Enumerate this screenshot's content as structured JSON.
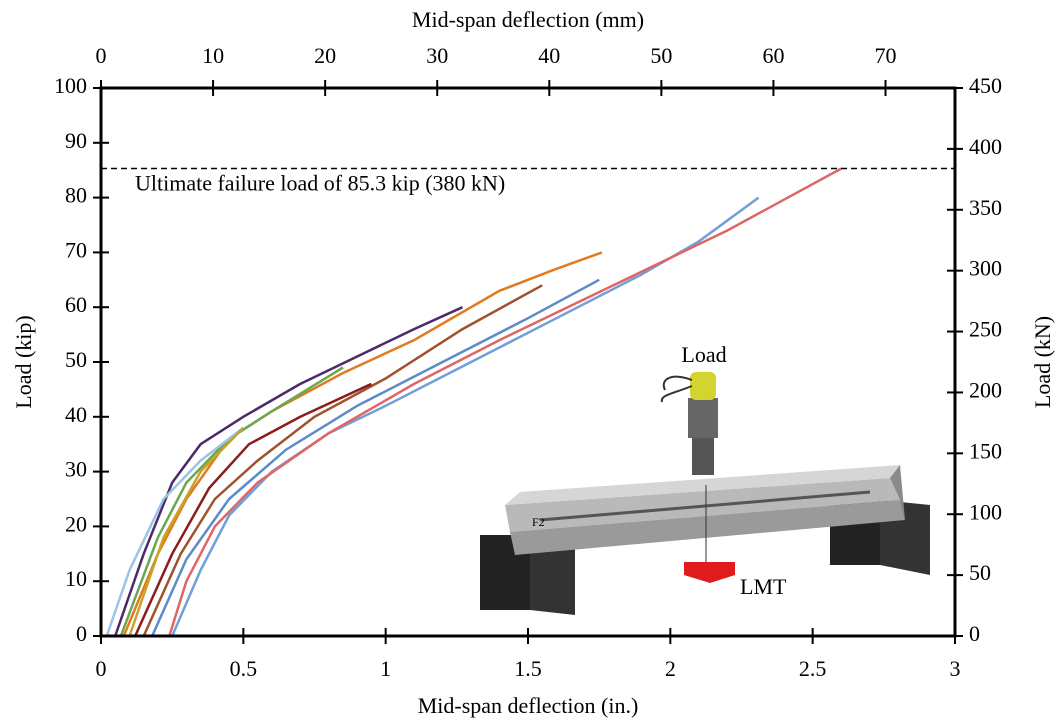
{
  "chart_data": {
    "type": "line",
    "xlabel": "Mid-span deflection (in.)",
    "x2label": "Mid-span deflection (mm)",
    "ylabel": "Load (kip)",
    "y2label": "Load (kN)",
    "xlim": [
      0,
      3
    ],
    "xticks": [
      0,
      0.5,
      1,
      1.5,
      2,
      2.5,
      3
    ],
    "x2lim": [
      0,
      76.2
    ],
    "x2ticks": [
      0,
      10,
      20,
      30,
      40,
      50,
      60,
      70
    ],
    "ylim": [
      0,
      100
    ],
    "yticks": [
      0,
      10,
      20,
      30,
      40,
      50,
      60,
      70,
      80,
      90,
      100
    ],
    "y2lim": [
      0,
      450
    ],
    "y2ticks": [
      0,
      50,
      100,
      150,
      200,
      250,
      300,
      350,
      400,
      450
    ],
    "reference_line": 85.3,
    "annotation": "Ultimate failure load of 85.3 kip (380 kN)",
    "inset_labels": [
      "Load",
      "LMT",
      "F2"
    ],
    "series": [
      {
        "color": "#4b2a6b",
        "x": [
          0.05,
          0.15,
          0.25,
          0.35,
          0.5,
          0.7,
          0.9,
          1.1,
          1.27
        ],
        "values": [
          0,
          15,
          28,
          35,
          40,
          46,
          51,
          56,
          60
        ]
      },
      {
        "color": "#e07b20",
        "x": [
          0.08,
          0.2,
          0.3,
          0.45,
          0.6,
          0.85,
          1.1,
          1.4,
          1.6,
          1.76
        ],
        "values": [
          0,
          15,
          25,
          36,
          41,
          48,
          54,
          63,
          67,
          70
        ]
      },
      {
        "color": "#6fa0d8",
        "x": [
          0.25,
          0.35,
          0.45,
          0.6,
          0.8,
          1.0,
          1.3,
          1.6,
          1.9,
          2.1,
          2.31
        ],
        "values": [
          0,
          12,
          22,
          30,
          37,
          42,
          50,
          58,
          66,
          72,
          80
        ]
      },
      {
        "color": "#e06666",
        "x": [
          0.24,
          0.3,
          0.4,
          0.55,
          0.8,
          1.1,
          1.4,
          1.8,
          2.2,
          2.6
        ],
        "values": [
          0,
          10,
          20,
          28,
          37,
          46,
          54,
          64,
          74,
          85.3
        ]
      },
      {
        "color": "#6aa84f",
        "x": [
          0.07,
          0.2,
          0.3,
          0.45,
          0.6,
          0.85
        ],
        "values": [
          0,
          18,
          28,
          36,
          41,
          49
        ]
      },
      {
        "color": "#9dc3e6",
        "x": [
          0.02,
          0.1,
          0.22,
          0.35,
          0.5
        ],
        "values": [
          0,
          12,
          25,
          32,
          38
        ]
      },
      {
        "color": "#a0522d",
        "x": [
          0.15,
          0.28,
          0.4,
          0.55,
          0.75,
          1.0,
          1.27,
          1.55
        ],
        "values": [
          0,
          15,
          25,
          32,
          40,
          47,
          56,
          64
        ]
      },
      {
        "color": "#5b8bc9",
        "x": [
          0.18,
          0.3,
          0.45,
          0.65,
          0.9,
          1.2,
          1.5,
          1.75
        ],
        "values": [
          0,
          14,
          25,
          34,
          42,
          50,
          58,
          65
        ]
      },
      {
        "color": "#c9a227",
        "x": [
          0.1,
          0.22,
          0.35,
          0.5
        ],
        "values": [
          0,
          18,
          30,
          38
        ]
      },
      {
        "color": "#8b1c1c",
        "x": [
          0.12,
          0.25,
          0.38,
          0.52,
          0.7,
          0.95
        ],
        "values": [
          0,
          15,
          27,
          35,
          40,
          46
        ]
      }
    ]
  }
}
